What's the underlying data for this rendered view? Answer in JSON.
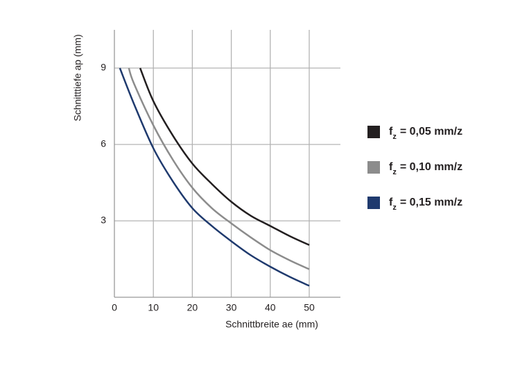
{
  "chart_data": {
    "type": "line",
    "x_label": "Schnittbreite ae (mm)",
    "y_label": "Schnitttiefe ap (mm)",
    "xlim": [
      0,
      58
    ],
    "ylim": [
      0,
      10.5
    ],
    "xticks": [
      0,
      10,
      20,
      30,
      40,
      50
    ],
    "yticks": [
      3,
      6,
      9
    ],
    "grid": true,
    "legend_position": "right",
    "legend_symbol": "f",
    "legend_subscript": "z",
    "series": [
      {
        "name": "= 0,05 mm/z",
        "color": "#231f20",
        "x": [
          6.6,
          10,
          15,
          20,
          25,
          30,
          35,
          40,
          45,
          50
        ],
        "values": [
          9,
          7.7,
          6.35,
          5.25,
          4.45,
          3.75,
          3.2,
          2.8,
          2.4,
          2.05
        ]
      },
      {
        "name": "= 0,10 mm/z",
        "color": "#8c8c8c",
        "x": [
          3.7,
          5,
          10,
          15,
          20,
          25,
          30,
          35,
          40,
          45,
          50
        ],
        "values": [
          9,
          8.4,
          6.75,
          5.4,
          4.3,
          3.5,
          2.9,
          2.35,
          1.85,
          1.45,
          1.1
        ]
      },
      {
        "name": "= 0,15 mm/z",
        "color": "#1f3a6e",
        "x": [
          1.4,
          5,
          10,
          15,
          20,
          25,
          30,
          35,
          40,
          45,
          50
        ],
        "values": [
          9,
          7.6,
          5.85,
          4.55,
          3.5,
          2.8,
          2.2,
          1.65,
          1.2,
          0.8,
          0.45
        ]
      }
    ]
  }
}
